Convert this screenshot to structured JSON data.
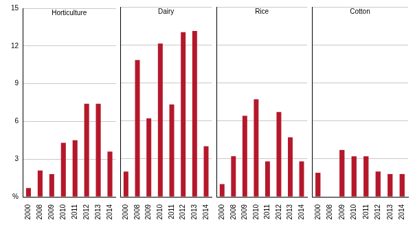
{
  "chart_data": [
    {
      "type": "bar",
      "title": "Horticulture",
      "categories": [
        "2000",
        "2008",
        "2009",
        "2010",
        "2011",
        "2012",
        "2013",
        "2014"
      ],
      "values": [
        0.7,
        2.1,
        1.8,
        4.3,
        4.5,
        7.4,
        7.4,
        3.6
      ],
      "color": "#b5182b",
      "ylim": [
        0,
        15
      ],
      "yticks": [
        {
          "value": 0,
          "label": "%"
        },
        3,
        6,
        9,
        12,
        15
      ],
      "grid": true
    },
    {
      "type": "bar",
      "title": "Dairy",
      "categories": [
        "2000",
        "2008",
        "2009",
        "2010",
        "2011",
        "2012",
        "2013",
        "2014"
      ],
      "values": [
        2.0,
        10.8,
        6.2,
        12.1,
        7.3,
        13.0,
        13.1,
        4.0
      ],
      "color": "#b5182b",
      "ylim": [
        0,
        15
      ],
      "yticks": [
        0,
        3,
        6,
        9,
        12,
        15
      ],
      "grid": true,
      "tick_labels": "x"
    },
    {
      "type": "bar",
      "title": "Rice",
      "categories": [
        "2000",
        "2008",
        "2009",
        "2010",
        "2011",
        "2012",
        "2013",
        "2014"
      ],
      "values": [
        1.0,
        3.2,
        6.4,
        7.7,
        2.8,
        6.7,
        4.7,
        2.8
      ],
      "color": "#b5182b",
      "ylim": [
        0,
        15
      ],
      "yticks": [
        0,
        3,
        6,
        9,
        12,
        15
      ],
      "grid": true,
      "tick_labels": "x"
    },
    {
      "type": "bar",
      "title": "Cotton",
      "categories": [
        "2000",
        "2008",
        "2009",
        "2010",
        "2011",
        "2012",
        "2013",
        "2014"
      ],
      "values": [
        1.9,
        null,
        3.7,
        3.2,
        3.2,
        2.0,
        1.8,
        1.8
      ],
      "color": "#b5182b",
      "ylim": [
        0,
        15
      ],
      "yticks": [
        0,
        3,
        6,
        9,
        12,
        15
      ],
      "grid": true,
      "tick_labels": "x"
    }
  ]
}
